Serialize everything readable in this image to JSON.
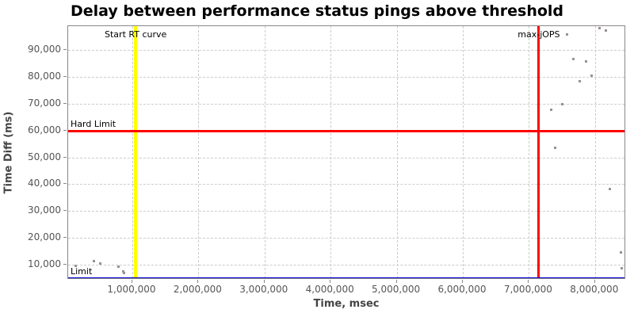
{
  "chart_data": {
    "type": "scatter",
    "title": "Delay between performance status pings above threshold",
    "xlabel": "Time, msec",
    "ylabel": "Time Diff (ms)",
    "xlim": [
      29000,
      8470000
    ],
    "ylim": [
      4400,
      98900
    ],
    "x_ticks": [
      1000000,
      2000000,
      3000000,
      4000000,
      5000000,
      6000000,
      7000000,
      8000000
    ],
    "y_ticks": [
      10000,
      20000,
      30000,
      40000,
      50000,
      60000,
      70000,
      80000,
      90000
    ],
    "grid": true,
    "legend_position": "none",
    "point_color": "#9a9097",
    "points": [
      [
        137000,
        9500
      ],
      [
        420000,
        11200
      ],
      [
        510000,
        10600
      ],
      [
        790000,
        9400
      ],
      [
        860000,
        7400
      ],
      [
        880000,
        6900
      ],
      [
        7340000,
        67800
      ],
      [
        7400000,
        53500
      ],
      [
        7500000,
        69800
      ],
      [
        7580000,
        95700
      ],
      [
        7670000,
        86700
      ],
      [
        7770000,
        78300
      ],
      [
        7870000,
        85800
      ],
      [
        7950000,
        80300
      ],
      [
        8070000,
        98300
      ],
      [
        8170000,
        97200
      ],
      [
        8220000,
        38300
      ],
      [
        8390000,
        14500
      ],
      [
        8400000,
        8600
      ]
    ],
    "markers": [
      {
        "label": "Start RT curve",
        "orientation": "vertical",
        "value": 1050000,
        "color": "#ffff00"
      },
      {
        "label": "max-jOPS",
        "orientation": "vertical",
        "value": 7150000,
        "color": "#ff0000"
      },
      {
        "label": "Hard Limit",
        "orientation": "horizontal",
        "value": 60000,
        "color": "#ff0000"
      },
      {
        "label": "Limit",
        "orientation": "horizontal",
        "value": 5000,
        "color": "#0000cc"
      }
    ]
  }
}
